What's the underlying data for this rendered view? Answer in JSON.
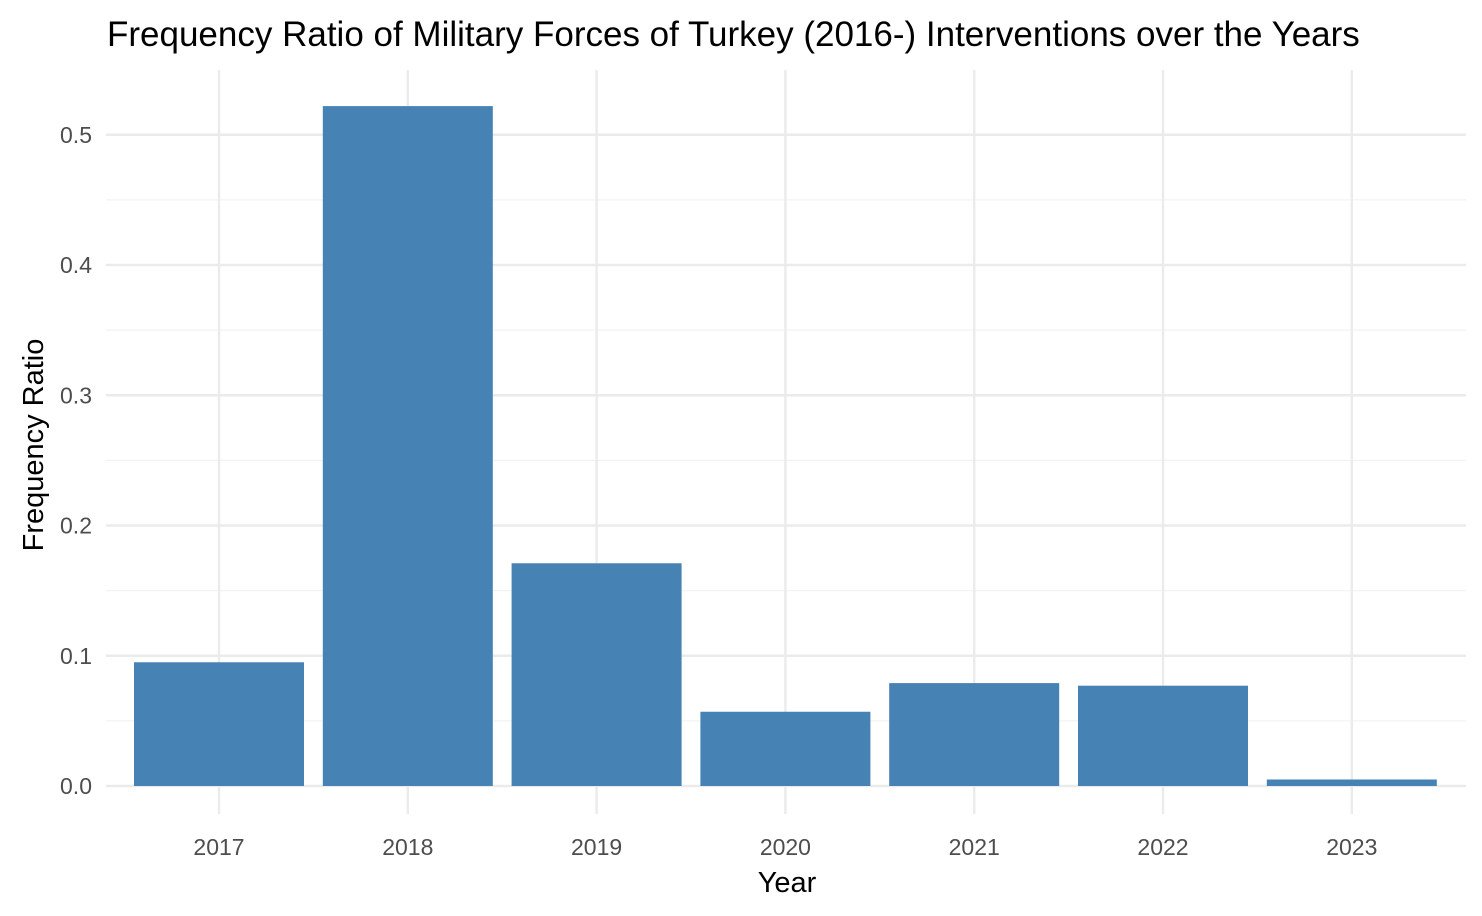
{
  "chart_data": {
    "type": "bar",
    "title": "Frequency Ratio of Military Forces of Turkey (2016-) Interventions over the Years",
    "xlabel": "Year",
    "ylabel": "Frequency Ratio",
    "categories": [
      "2017",
      "2018",
      "2019",
      "2020",
      "2021",
      "2022",
      "2023"
    ],
    "values": [
      0.095,
      0.522,
      0.171,
      0.057,
      0.079,
      0.077,
      0.005
    ],
    "ylim": [
      0,
      0.54
    ],
    "yticks": [
      0.0,
      0.1,
      0.2,
      0.3,
      0.4,
      0.5
    ],
    "ytick_labels": [
      "0.0",
      "0.1",
      "0.2",
      "0.3",
      "0.4",
      "0.5"
    ],
    "grid": true,
    "legend": "none",
    "colors": {
      "bar": "#4682B4",
      "grid_major": "#EBEBEB",
      "grid_minor": "#F3F3F3",
      "tick_text": "#4D4D4D",
      "text": "#000000"
    }
  }
}
